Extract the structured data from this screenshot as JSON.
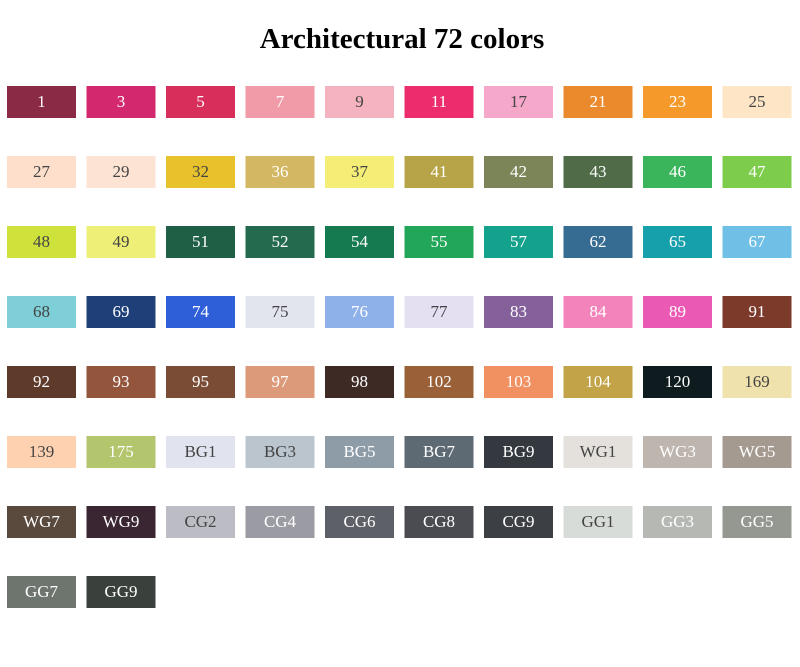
{
  "title": "Architectural 72 colors",
  "swatches": [
    {
      "label": "1",
      "color": "#8b2a45"
    },
    {
      "label": "3",
      "color": "#d3286e"
    },
    {
      "label": "5",
      "color": "#d72e5c"
    },
    {
      "label": "7",
      "color": "#f19aa8"
    },
    {
      "label": "9",
      "color": "#f5b3c0"
    },
    {
      "label": "11",
      "color": "#ec2c6c"
    },
    {
      "label": "17",
      "color": "#f5a8c9"
    },
    {
      "label": "21",
      "color": "#ea8a2c"
    },
    {
      "label": "23",
      "color": "#f59a2a"
    },
    {
      "label": "25",
      "color": "#fde5c5"
    },
    {
      "label": "27",
      "color": "#fddfcb"
    },
    {
      "label": "29",
      "color": "#fde3d3"
    },
    {
      "label": "32",
      "color": "#e8c22c"
    },
    {
      "label": "36",
      "color": "#d4b763"
    },
    {
      "label": "37",
      "color": "#f5ee76"
    },
    {
      "label": "41",
      "color": "#b8a448"
    },
    {
      "label": "42",
      "color": "#7b8557"
    },
    {
      "label": "43",
      "color": "#4f6b47"
    },
    {
      "label": "46",
      "color": "#3bb55b"
    },
    {
      "label": "47",
      "color": "#7dcc4b"
    },
    {
      "label": "48",
      "color": "#cfe23b"
    },
    {
      "label": "49",
      "color": "#eeef76"
    },
    {
      "label": "51",
      "color": "#1f5f46"
    },
    {
      "label": "52",
      "color": "#236a4e"
    },
    {
      "label": "54",
      "color": "#157a4f"
    },
    {
      "label": "55",
      "color": "#22a659"
    },
    {
      "label": "57",
      "color": "#15a28d"
    },
    {
      "label": "62",
      "color": "#376c92"
    },
    {
      "label": "65",
      "color": "#16a0ac"
    },
    {
      "label": "67",
      "color": "#6fbfe6"
    },
    {
      "label": "68",
      "color": "#7fcfd9"
    },
    {
      "label": "69",
      "color": "#1f3f79"
    },
    {
      "label": "74",
      "color": "#2f5fd8"
    },
    {
      "label": "75",
      "color": "#e2e4ee"
    },
    {
      "label": "76",
      "color": "#8fb1ea"
    },
    {
      "label": "77",
      "color": "#e4e0f2"
    },
    {
      "label": "83",
      "color": "#85619c"
    },
    {
      "label": "84",
      "color": "#f383bb"
    },
    {
      "label": "89",
      "color": "#ea5ab5"
    },
    {
      "label": "91",
      "color": "#7c3a2b"
    },
    {
      "label": "92",
      "color": "#5e3a2a"
    },
    {
      "label": "93",
      "color": "#93553b"
    },
    {
      "label": "95",
      "color": "#7b4c35"
    },
    {
      "label": "97",
      "color": "#dc9a7a"
    },
    {
      "label": "98",
      "color": "#3e2a24"
    },
    {
      "label": "102",
      "color": "#9a6038"
    },
    {
      "label": "103",
      "color": "#f19060"
    },
    {
      "label": "104",
      "color": "#c2a347"
    },
    {
      "label": "120",
      "color": "#0e1b1f"
    },
    {
      "label": "169",
      "color": "#efe2ad"
    },
    {
      "label": "139",
      "color": "#fed2b0"
    },
    {
      "label": "175",
      "color": "#b3c56d"
    },
    {
      "label": "BG1",
      "color": "#e1e3ee"
    },
    {
      "label": "BG3",
      "color": "#bac5ce"
    },
    {
      "label": "BG5",
      "color": "#8e9ca8"
    },
    {
      "label": "BG7",
      "color": "#5e6a73"
    },
    {
      "label": "BG9",
      "color": "#33393f"
    },
    {
      "label": "WG1",
      "color": "#e4e0dc"
    },
    {
      "label": "WG3",
      "color": "#bdb5ae"
    },
    {
      "label": "WG5",
      "color": "#a59a90"
    },
    {
      "label": "WG7",
      "color": "#5a4a3e"
    },
    {
      "label": "WG9",
      "color": "#3a2632"
    },
    {
      "label": "CG2",
      "color": "#bcbcc4"
    },
    {
      "label": "CG4",
      "color": "#9b9ba3"
    },
    {
      "label": "CG6",
      "color": "#5e6068"
    },
    {
      "label": "CG8",
      "color": "#4a4c52"
    },
    {
      "label": "CG9",
      "color": "#3c3f44"
    },
    {
      "label": "GG1",
      "color": "#d8dcd8"
    },
    {
      "label": "GG3",
      "color": "#b5b8b3"
    },
    {
      "label": "GG5",
      "color": "#949890"
    },
    {
      "label": "GG7",
      "color": "#6e756f"
    },
    {
      "label": "GG9",
      "color": "#3a413c"
    }
  ]
}
